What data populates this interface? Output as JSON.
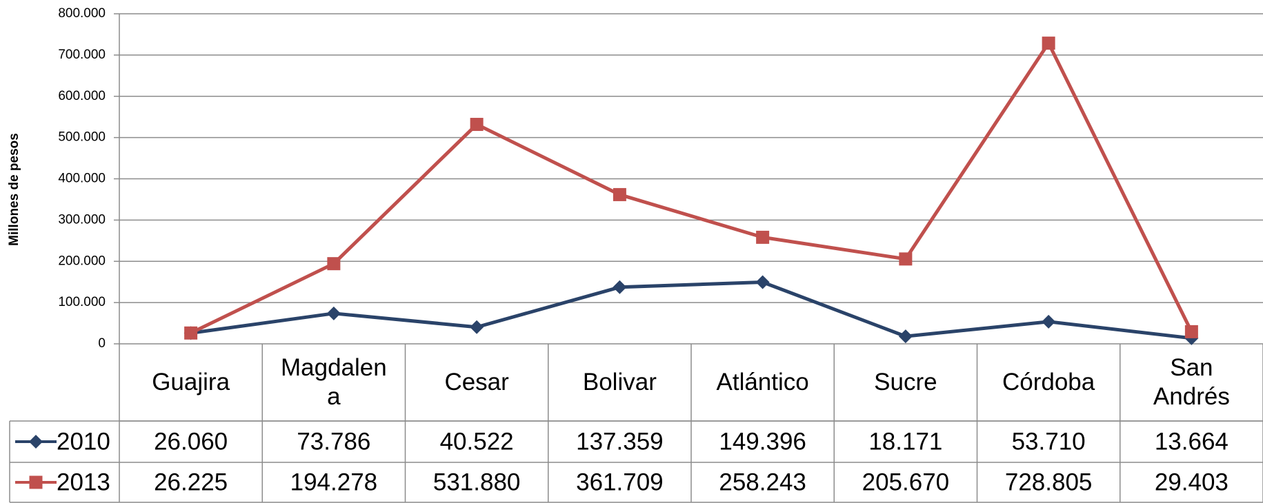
{
  "chart_data": {
    "type": "line",
    "y_label": "Millones de pesos",
    "categories": [
      "Guajira",
      "Magdalena",
      "Cesar",
      "Bolivar",
      "Atlántico",
      "Sucre",
      "Córdoba",
      "San Andrés"
    ],
    "series": [
      {
        "name": "2010",
        "color": "#2a4369",
        "marker": "diamond",
        "values": [
          26060,
          73786,
          40522,
          137359,
          149396,
          18171,
          53710,
          13664
        ],
        "value_labels": [
          "26.060",
          "73.786",
          "40.522",
          "137.359",
          "149.396",
          "18.171",
          "53.710",
          "13.664"
        ]
      },
      {
        "name": "2013",
        "color": "#c0504d",
        "marker": "square",
        "values": [
          26225,
          194278,
          531880,
          361709,
          258243,
          205670,
          728805,
          29403
        ],
        "value_labels": [
          "26.225",
          "194.278",
          "531.880",
          "361.709",
          "258.243",
          "205.670",
          "728.805",
          "29.403"
        ]
      }
    ],
    "ylim": [
      0,
      800000
    ],
    "yticks": [
      0,
      {
        "value": 100000,
        "label": "100.000"
      },
      {
        "value": 200000,
        "label": "200.000"
      },
      {
        "value": 300000,
        "label": "300.000"
      },
      {
        "value": 400000,
        "label": "400.000"
      },
      {
        "value": 500000,
        "label": "500.000"
      },
      {
        "value": 600000,
        "label": "600.000"
      },
      {
        "value": 700000,
        "label": "700.000"
      },
      {
        "value": 800000,
        "label": "800.000"
      }
    ],
    "grid": true
  }
}
